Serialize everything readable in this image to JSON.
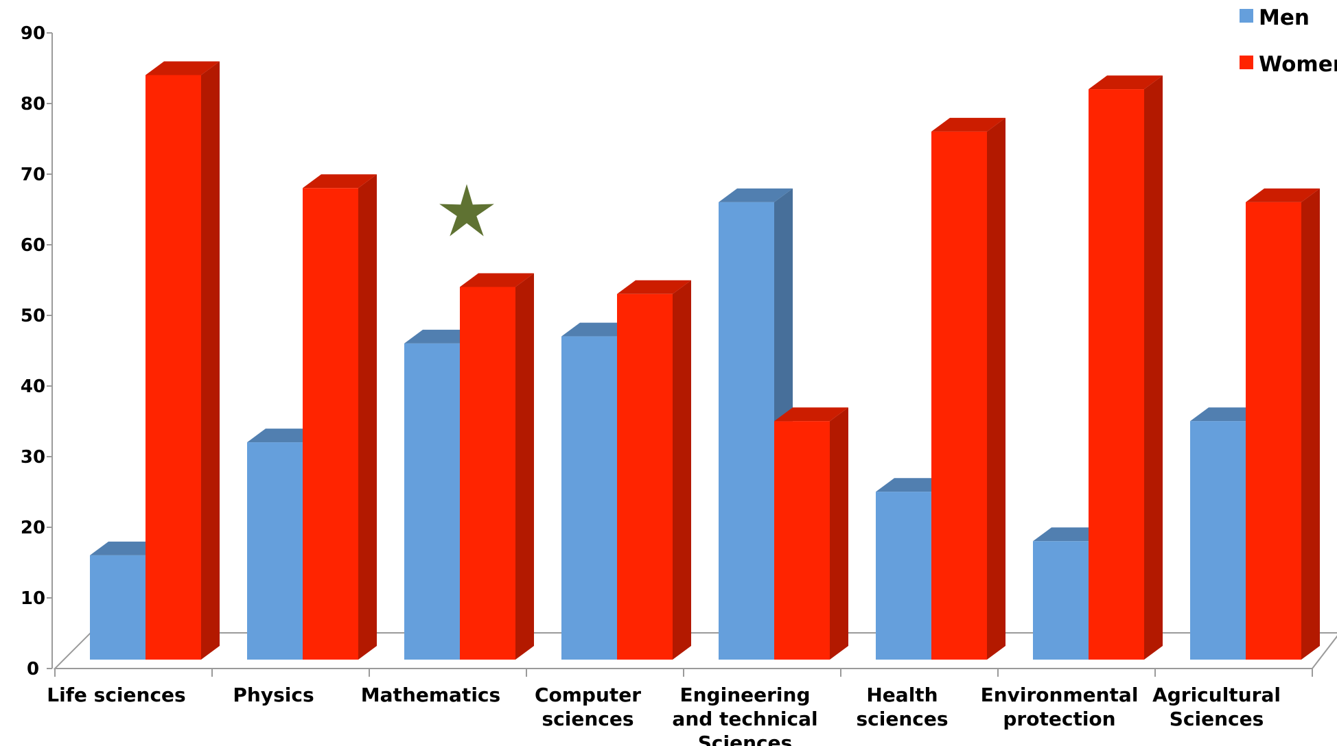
{
  "chart_data": {
    "type": "bar",
    "categories": [
      [
        "Life sciences"
      ],
      [
        "Physics"
      ],
      [
        "Mathematics"
      ],
      [
        "Computer",
        "sciences"
      ],
      [
        "Engineering",
        "and technical",
        "Sciences"
      ],
      [
        "Health",
        "sciences"
      ],
      [
        "Environmental",
        "protection"
      ],
      [
        "Agricultural",
        "Sciences"
      ]
    ],
    "series": [
      {
        "name": "Men",
        "values": [
          17,
          33,
          47,
          48,
          67,
          26,
          19,
          36
        ],
        "color": "#659fdc"
      },
      {
        "name": "Women",
        "values": [
          85,
          69,
          55,
          54,
          36,
          77,
          83,
          67
        ],
        "color": "#ff2400"
      }
    ],
    "ylim": [
      0,
      90
    ],
    "yticks": [
      "0",
      "10",
      "20",
      "30",
      "40",
      "50",
      "60",
      "70",
      "80",
      "90"
    ],
    "title": "",
    "xlabel": "",
    "ylabel": "",
    "legend_position": "top-right",
    "grid": false,
    "chart_style": "3d-clustered-columns",
    "annotations": [
      {
        "type": "star",
        "category": "Mathematics",
        "value": 65,
        "color": "#5f7232"
      }
    ]
  }
}
